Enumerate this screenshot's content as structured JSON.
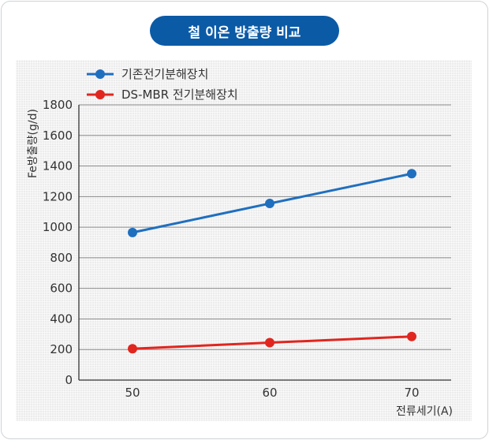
{
  "chart_data": {
    "type": "line",
    "title": "철 이온 방출량 비교",
    "xlabel": "전류세기(A)",
    "ylabel": "Fe방출량(g/d)",
    "x": [
      50,
      60,
      70
    ],
    "x_ticks": [
      "50",
      "60",
      "70"
    ],
    "ylim": [
      0,
      1800
    ],
    "y_ticks": [
      "0",
      "200",
      "400",
      "600",
      "800",
      "1000",
      "1200",
      "1400",
      "1600",
      "1800"
    ],
    "grid": true,
    "legend_position": "top-left",
    "series": [
      {
        "name": "기존전기분해장치",
        "color": "#1f6fbf",
        "values": [
          965,
          1155,
          1350
        ]
      },
      {
        "name": "DS-MBR 전기분해장치",
        "color": "#e0261f",
        "values": [
          205,
          245,
          285
        ]
      }
    ]
  }
}
